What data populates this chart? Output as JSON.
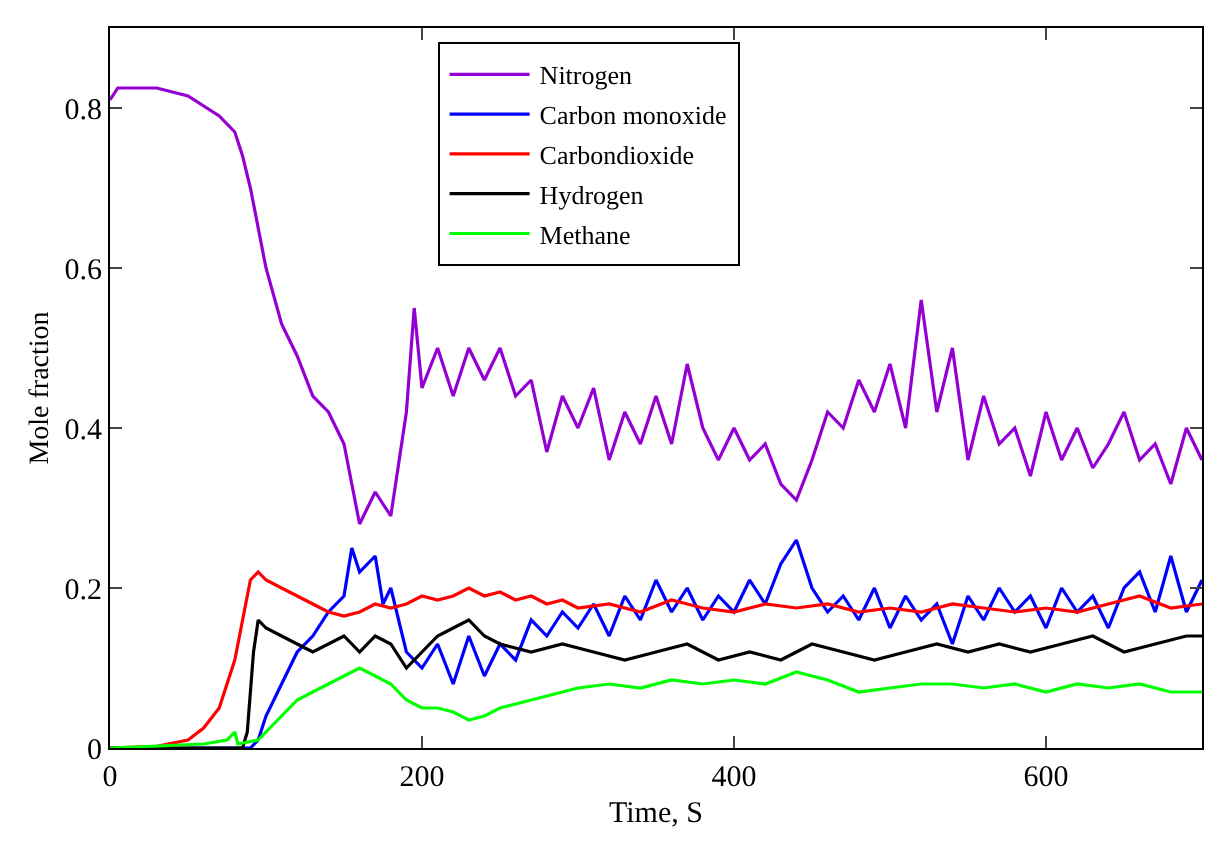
{
  "chart_data": {
    "type": "line",
    "xlabel": "Time, S",
    "ylabel": "Mole fraction",
    "xlim": [
      0,
      700
    ],
    "ylim": [
      0,
      0.9
    ],
    "xticks": [
      0,
      200,
      400,
      600
    ],
    "yticks": [
      0,
      0.2,
      0.4,
      0.6,
      0.8
    ],
    "legend": "top",
    "marker": "none",
    "line_style": "solid",
    "series": [
      {
        "name": "Nitrogen",
        "color": "#9400d3",
        "x": [
          0,
          5,
          30,
          50,
          70,
          80,
          85,
          90,
          95,
          100,
          110,
          120,
          130,
          140,
          150,
          155,
          160,
          170,
          180,
          190,
          195,
          200,
          210,
          220,
          230,
          240,
          250,
          260,
          270,
          280,
          290,
          300,
          310,
          320,
          330,
          340,
          350,
          360,
          370,
          380,
          390,
          400,
          410,
          420,
          430,
          440,
          450,
          460,
          470,
          480,
          490,
          500,
          510,
          520,
          530,
          540,
          550,
          560,
          570,
          580,
          590,
          600,
          610,
          620,
          630,
          640,
          650,
          660,
          670,
          680,
          690,
          700
        ],
        "values": [
          0.81,
          0.825,
          0.825,
          0.815,
          0.79,
          0.77,
          0.74,
          0.7,
          0.65,
          0.6,
          0.53,
          0.49,
          0.44,
          0.42,
          0.38,
          0.33,
          0.28,
          0.32,
          0.29,
          0.42,
          0.55,
          0.45,
          0.5,
          0.44,
          0.5,
          0.46,
          0.5,
          0.44,
          0.46,
          0.37,
          0.44,
          0.4,
          0.45,
          0.36,
          0.42,
          0.38,
          0.44,
          0.38,
          0.48,
          0.4,
          0.36,
          0.4,
          0.36,
          0.38,
          0.33,
          0.31,
          0.36,
          0.42,
          0.4,
          0.46,
          0.42,
          0.48,
          0.4,
          0.56,
          0.42,
          0.5,
          0.36,
          0.44,
          0.38,
          0.4,
          0.34,
          0.42,
          0.36,
          0.4,
          0.35,
          0.38,
          0.42,
          0.36,
          0.38,
          0.33,
          0.4,
          0.36
        ]
      },
      {
        "name": "Carbon monoxide",
        "color": "#0000ff",
        "x": [
          0,
          90,
          95,
          100,
          110,
          120,
          130,
          140,
          150,
          155,
          160,
          170,
          175,
          180,
          190,
          200,
          210,
          220,
          230,
          240,
          250,
          260,
          270,
          280,
          290,
          300,
          310,
          320,
          330,
          340,
          350,
          360,
          370,
          380,
          390,
          400,
          410,
          420,
          430,
          440,
          450,
          460,
          470,
          480,
          490,
          500,
          510,
          520,
          530,
          540,
          550,
          560,
          570,
          580,
          590,
          600,
          610,
          620,
          630,
          640,
          650,
          660,
          670,
          680,
          690,
          700
        ],
        "values": [
          0,
          0,
          0.01,
          0.04,
          0.08,
          0.12,
          0.14,
          0.17,
          0.19,
          0.25,
          0.22,
          0.24,
          0.18,
          0.2,
          0.12,
          0.1,
          0.13,
          0.08,
          0.14,
          0.09,
          0.13,
          0.11,
          0.16,
          0.14,
          0.17,
          0.15,
          0.18,
          0.14,
          0.19,
          0.16,
          0.21,
          0.17,
          0.2,
          0.16,
          0.19,
          0.17,
          0.21,
          0.18,
          0.23,
          0.26,
          0.2,
          0.17,
          0.19,
          0.16,
          0.2,
          0.15,
          0.19,
          0.16,
          0.18,
          0.13,
          0.19,
          0.16,
          0.2,
          0.17,
          0.19,
          0.15,
          0.2,
          0.17,
          0.19,
          0.15,
          0.2,
          0.22,
          0.17,
          0.24,
          0.17,
          0.21
        ]
      },
      {
        "name": "Carbondioxide",
        "color": "#ff0000",
        "x": [
          0,
          30,
          50,
          60,
          70,
          80,
          85,
          90,
          95,
          100,
          110,
          120,
          130,
          140,
          150,
          160,
          170,
          180,
          190,
          200,
          210,
          220,
          230,
          240,
          250,
          260,
          270,
          280,
          290,
          300,
          320,
          340,
          360,
          380,
          400,
          420,
          440,
          460,
          480,
          500,
          520,
          540,
          560,
          580,
          600,
          620,
          640,
          660,
          680,
          700
        ],
        "values": [
          0,
          0.002,
          0.01,
          0.025,
          0.05,
          0.11,
          0.16,
          0.21,
          0.22,
          0.21,
          0.2,
          0.19,
          0.18,
          0.17,
          0.165,
          0.17,
          0.18,
          0.175,
          0.18,
          0.19,
          0.185,
          0.19,
          0.2,
          0.19,
          0.195,
          0.185,
          0.19,
          0.18,
          0.185,
          0.175,
          0.18,
          0.17,
          0.185,
          0.175,
          0.17,
          0.18,
          0.175,
          0.18,
          0.17,
          0.175,
          0.17,
          0.18,
          0.175,
          0.17,
          0.175,
          0.17,
          0.18,
          0.19,
          0.175,
          0.18
        ]
      },
      {
        "name": "Hydrogen",
        "color": "#000000",
        "x": [
          0,
          85,
          88,
          92,
          95,
          100,
          110,
          120,
          130,
          140,
          150,
          160,
          170,
          180,
          190,
          200,
          210,
          220,
          230,
          240,
          250,
          270,
          290,
          310,
          330,
          350,
          370,
          390,
          410,
          430,
          450,
          470,
          490,
          510,
          530,
          550,
          570,
          590,
          610,
          630,
          650,
          670,
          690,
          700
        ],
        "values": [
          0,
          0,
          0.02,
          0.12,
          0.16,
          0.15,
          0.14,
          0.13,
          0.12,
          0.13,
          0.14,
          0.12,
          0.14,
          0.13,
          0.1,
          0.12,
          0.14,
          0.15,
          0.16,
          0.14,
          0.13,
          0.12,
          0.13,
          0.12,
          0.11,
          0.12,
          0.13,
          0.11,
          0.12,
          0.11,
          0.13,
          0.12,
          0.11,
          0.12,
          0.13,
          0.12,
          0.13,
          0.12,
          0.13,
          0.14,
          0.12,
          0.13,
          0.14,
          0.14
        ]
      },
      {
        "name": "Methane",
        "color": "#00ff00",
        "x": [
          0,
          60,
          75,
          80,
          82,
          95,
          100,
          110,
          120,
          130,
          140,
          150,
          160,
          170,
          180,
          190,
          200,
          210,
          220,
          230,
          240,
          250,
          260,
          270,
          280,
          290,
          300,
          320,
          340,
          360,
          380,
          400,
          420,
          440,
          460,
          480,
          500,
          520,
          540,
          560,
          580,
          600,
          620,
          640,
          660,
          680,
          700
        ],
        "values": [
          0,
          0.005,
          0.01,
          0.02,
          0.005,
          0.01,
          0.02,
          0.04,
          0.06,
          0.07,
          0.08,
          0.09,
          0.1,
          0.09,
          0.08,
          0.06,
          0.05,
          0.05,
          0.045,
          0.035,
          0.04,
          0.05,
          0.055,
          0.06,
          0.065,
          0.07,
          0.075,
          0.08,
          0.075,
          0.085,
          0.08,
          0.085,
          0.08,
          0.095,
          0.085,
          0.07,
          0.075,
          0.08,
          0.08,
          0.075,
          0.08,
          0.07,
          0.08,
          0.075,
          0.08,
          0.07,
          0.07
        ]
      }
    ]
  }
}
